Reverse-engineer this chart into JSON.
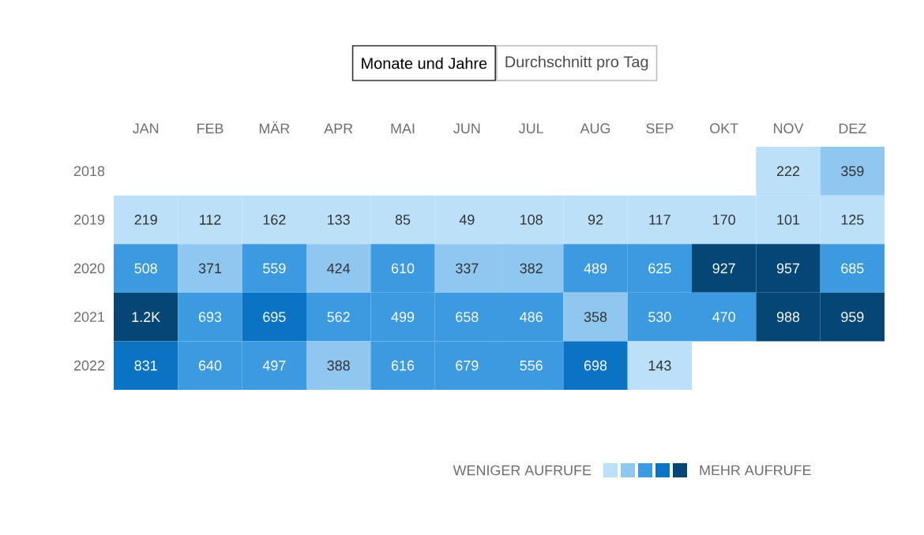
{
  "chart_data": {
    "type": "heatmap",
    "categories": [
      "JAN",
      "FEB",
      "MÄR",
      "APR",
      "MAI",
      "JUN",
      "JUL",
      "AUG",
      "SEP",
      "OKT",
      "NOV",
      "DEZ"
    ],
    "y_categories": [
      "2018",
      "2019",
      "2020",
      "2021",
      "2022"
    ],
    "cells": [
      [
        null,
        null,
        null,
        null,
        null,
        null,
        null,
        null,
        null,
        null,
        222,
        359
      ],
      [
        219,
        112,
        162,
        133,
        85,
        49,
        108,
        92,
        117,
        170,
        101,
        125
      ],
      [
        508,
        371,
        559,
        424,
        610,
        337,
        382,
        489,
        625,
        927,
        957,
        685
      ],
      [
        1200,
        693,
        695,
        562,
        499,
        658,
        486,
        358,
        530,
        470,
        988,
        959
      ],
      [
        831,
        640,
        497,
        388,
        616,
        679,
        556,
        698,
        143,
        null,
        null,
        null
      ]
    ],
    "cell_labels": [
      [
        null,
        null,
        null,
        null,
        null,
        null,
        null,
        null,
        null,
        null,
        "222",
        "359"
      ],
      [
        "219",
        "112",
        "162",
        "133",
        "85",
        "49",
        "108",
        "92",
        "117",
        "170",
        "101",
        "125"
      ],
      [
        "508",
        "371",
        "559",
        "424",
        "610",
        "337",
        "382",
        "489",
        "625",
        "927",
        "957",
        "685"
      ],
      [
        "1.2K",
        "693",
        "695",
        "562",
        "499",
        "658",
        "486",
        "358",
        "530",
        "470",
        "988",
        "959"
      ],
      [
        "831",
        "640",
        "497",
        "388",
        "616",
        "679",
        "556",
        "698",
        "143",
        null,
        null,
        null
      ]
    ],
    "colors": [
      [
        null,
        null,
        null,
        null,
        null,
        null,
        null,
        null,
        null,
        null,
        "#bde0f9",
        "#90c7f0"
      ],
      [
        "#bde0f9",
        "#bde0f9",
        "#bde0f9",
        "#bde0f9",
        "#bde0f9",
        "#bde0f9",
        "#bde0f9",
        "#bde0f9",
        "#bde0f9",
        "#bde0f9",
        "#bde0f9",
        "#bde0f9"
      ],
      [
        "#3c9ae0",
        "#90c7f0",
        "#3c9ae0",
        "#90c7f0",
        "#3c9ae0",
        "#90c7f0",
        "#90c7f0",
        "#3c9ae0",
        "#3c9ae0",
        "#064677",
        "#064677",
        "#3c9ae0"
      ],
      [
        "#064677",
        "#3c9ae0",
        "#0b73c4",
        "#3c9ae0",
        "#3c9ae0",
        "#3c9ae0",
        "#3c9ae0",
        "#90c7f0",
        "#3c9ae0",
        "#3c9ae0",
        "#064677",
        "#064677"
      ],
      [
        "#0b73c4",
        "#3c9ae0",
        "#3c9ae0",
        "#90c7f0",
        "#3c9ae0",
        "#3c9ae0",
        "#3c9ae0",
        "#0b73c4",
        "#bde0f9",
        null,
        null,
        null
      ]
    ],
    "annotations": [
      "Monate und Jahre",
      "Durchschnitt pro Tag",
      "WENIGER AUFRUFE",
      "MEHR AUFRUFE"
    ]
  }
}
